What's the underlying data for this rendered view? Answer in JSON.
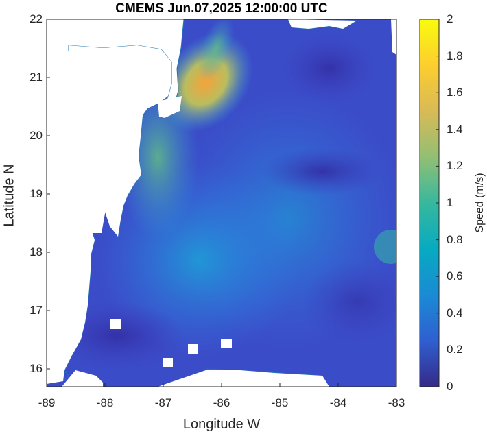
{
  "map": {
    "title": "CMEMS Jun.07,2025 12:00:00 UTC",
    "xlabel": "Longitude W",
    "ylabel": "Latitude N",
    "x_ticks": [
      "-89",
      "-88",
      "-87",
      "-86",
      "-85",
      "-84",
      "-83"
    ],
    "y_ticks": [
      "22",
      "21",
      "20",
      "19",
      "18",
      "17",
      "16"
    ],
    "xlim": [
      -89,
      -83
    ],
    "ylim": [
      15.7,
      22
    ]
  },
  "colorbar": {
    "label": "Speed (m/s)",
    "ticks": [
      "0",
      "0.2",
      "0.4",
      "0.6",
      "0.8",
      "1",
      "1.2",
      "1.4",
      "1.6",
      "1.8",
      "2"
    ],
    "range": [
      0,
      2
    ],
    "colormap": "parula",
    "colors": [
      "#352a87",
      "#2f5fd0",
      "#1a8bd4",
      "#07aac1",
      "#37b89d",
      "#92bf73",
      "#d9ba56",
      "#fcce2e",
      "#f9fb0e"
    ]
  },
  "colors": {
    "coast": "#1f77b4",
    "land": "#ffffff",
    "low_speed": "#3d3fbf",
    "mid_speed": "#2f80e8",
    "high_speed": "#f6a33a"
  }
}
